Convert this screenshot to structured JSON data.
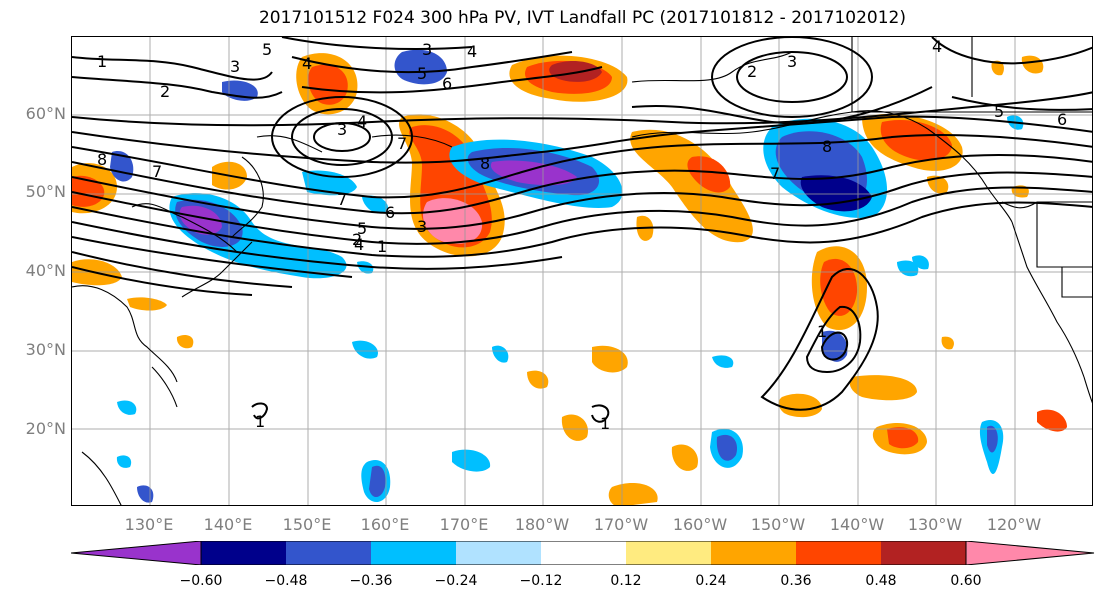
{
  "title": "2017101512 F024 300 hPa PV, IVT Landfall PC (2017101812 - 2017102012)",
  "lat_labels": [
    "60°N",
    "50°N",
    "40°N",
    "30°N",
    "20°N"
  ],
  "lon_labels": [
    "130°E",
    "140°E",
    "150°E",
    "160°E",
    "170°E",
    "180°W",
    "170°W",
    "160°W",
    "150°W",
    "140°W",
    "130°W",
    "120°W"
  ],
  "colorbar": {
    "ticks": [
      "−0.60",
      "−0.48",
      "−0.36",
      "−0.24",
      "−0.12",
      "0.12",
      "0.24",
      "0.36",
      "0.48",
      "0.60"
    ],
    "colors": [
      "#9933cc",
      "#00008b",
      "#3355cc",
      "#00bfff",
      "#b0e2ff",
      "#ffffff",
      "#ffeb80",
      "#ffa500",
      "#ff4500",
      "#b22222",
      "#ff88aa"
    ]
  },
  "contour_labels": [
    "1",
    "2",
    "3",
    "4",
    "5",
    "6",
    "7",
    "8"
  ]
}
